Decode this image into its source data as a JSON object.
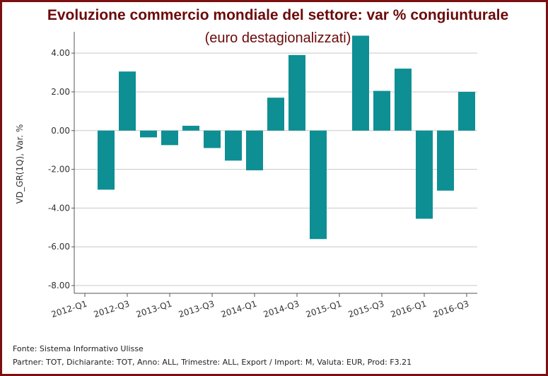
{
  "chart_data": {
    "type": "bar",
    "title": "Evoluzione commercio mondiale del settore: var % congiunturale",
    "subtitle": "(euro destagionalizzati)",
    "y_label": "VD_GR(1Q), Var. %",
    "categories": [
      "2012-Q1",
      null,
      "2012-Q3",
      null,
      "2013-Q1",
      null,
      "2013-Q3",
      null,
      "2014-Q1",
      null,
      "2014-Q3",
      null,
      "2015-Q1",
      null,
      "2015-Q3",
      null,
      "2016-Q1",
      null,
      "2016-Q3"
    ],
    "values": [
      null,
      -3.05,
      3.05,
      -0.35,
      -0.75,
      0.25,
      -0.9,
      -1.55,
      -2.05,
      1.7,
      3.9,
      -5.6,
      null,
      4.9,
      2.05,
      3.2,
      -4.55,
      -3.1,
      2.0
    ],
    "color": "#0e8f94",
    "ylim": [
      -8.4,
      5.1
    ],
    "yticks": [
      {
        "value": -8,
        "label": "-8.00"
      },
      {
        "value": -6,
        "label": "-6.00"
      },
      {
        "value": -4,
        "label": "-4.00"
      },
      {
        "value": -2,
        "label": "-2.00"
      },
      {
        "value": 0,
        "label": "0.00"
      },
      {
        "value": 2,
        "label": "2.00"
      },
      {
        "value": 4,
        "label": "4.00"
      }
    ],
    "grid": true,
    "source": "Fonte: Sistema Informativo Ulisse",
    "note": "Partner: TOT, Dichiarante: TOT, Anno: ALL, Trimestre: ALL, Export / Import: M, Valuta: EUR, Prod: F3.21"
  }
}
